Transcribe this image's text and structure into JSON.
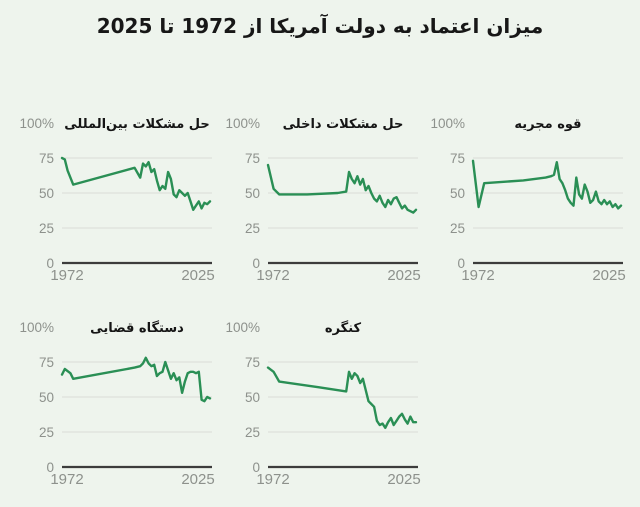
{
  "page": {
    "title": "میزان اعتماد به دولت آمریکا از 1972 تا 2025",
    "background": "#eef4ed"
  },
  "colors": {
    "line": "#2a8f55",
    "grid": "#d9ddd6",
    "axis": "#3c3c3c",
    "tick_text": "#8d918c",
    "title_text": "#151515"
  },
  "axis_labels": {
    "y_top": "100%",
    "y_ticks": [
      "75",
      "50",
      "25",
      "0"
    ],
    "x_ticks": [
      "1972",
      "2025"
    ]
  },
  "chart_data": [
    {
      "type": "line",
      "title": "حل مشکلات بین‌المللی",
      "y_top_label": "100%",
      "y_tick_values": [
        75,
        50,
        25,
        0
      ],
      "grid_values": [
        75,
        50,
        25
      ],
      "x_tick_labels": [
        "1972",
        "2025"
      ],
      "ylim": [
        0,
        100
      ],
      "xlim": [
        1972,
        2025
      ],
      "x": [
        1972,
        1973,
        1974,
        1976,
        1998,
        2000,
        2001,
        2002,
        2003,
        2004,
        2005,
        2006,
        2007,
        2008,
        2009,
        2010,
        2011,
        2012,
        2013,
        2014,
        2015,
        2016,
        2017,
        2018,
        2019,
        2020,
        2021,
        2022,
        2023,
        2024,
        2025
      ],
      "y": [
        75,
        74,
        66,
        56,
        68,
        61,
        71,
        69,
        72,
        65,
        67,
        59,
        52,
        55,
        53,
        65,
        60,
        49,
        47,
        52,
        50,
        48,
        50,
        44,
        38,
        41,
        44,
        39,
        43,
        42,
        44
      ]
    },
    {
      "type": "line",
      "title": "حل مشکلات داخلی",
      "y_top_label": "100%",
      "y_tick_values": [
        75,
        50,
        25,
        0
      ],
      "grid_values": [
        75,
        50,
        25
      ],
      "x_tick_labels": [
        "1972",
        "2025"
      ],
      "ylim": [
        0,
        100
      ],
      "xlim": [
        1972,
        2025
      ],
      "x": [
        1972,
        1974,
        1976,
        1986,
        1997,
        2000,
        2001,
        2002,
        2003,
        2004,
        2005,
        2006,
        2007,
        2008,
        2009,
        2010,
        2011,
        2012,
        2013,
        2014,
        2015,
        2016,
        2017,
        2018,
        2019,
        2020,
        2021,
        2022,
        2023,
        2024,
        2025
      ],
      "y": [
        70,
        53,
        49,
        49,
        50,
        51,
        65,
        60,
        57,
        62,
        56,
        60,
        52,
        55,
        50,
        46,
        44,
        48,
        43,
        40,
        45,
        42,
        46,
        47,
        43,
        39,
        41,
        38,
        37,
        36,
        38
      ]
    },
    {
      "type": "line",
      "title": "قوه مجریه",
      "y_top_label": "100%",
      "y_tick_values": [
        75,
        50,
        25,
        0
      ],
      "grid_values": [
        75,
        50,
        25
      ],
      "x_tick_labels": [
        "1972",
        "2025"
      ],
      "ylim": [
        0,
        100
      ],
      "xlim": [
        1972,
        2025
      ],
      "x": [
        1972,
        1974,
        1976,
        1990,
        1998,
        2000,
        2001,
        2002,
        2003,
        2004,
        2005,
        2006,
        2007,
        2008,
        2009,
        2010,
        2011,
        2012,
        2013,
        2014,
        2015,
        2016,
        2017,
        2018,
        2019,
        2020,
        2021,
        2022,
        2023,
        2024,
        2025
      ],
      "y": [
        73,
        40,
        57,
        59,
        61,
        62,
        63,
        72,
        60,
        57,
        52,
        46,
        43,
        41,
        61,
        49,
        46,
        56,
        51,
        43,
        45,
        51,
        44,
        42,
        45,
        42,
        44,
        40,
        42,
        39,
        41
      ]
    },
    {
      "type": "line",
      "title": "دستگاه قضایی",
      "y_top_label": "100%",
      "y_tick_values": [
        75,
        50,
        25,
        0
      ],
      "grid_values": [
        75,
        50,
        25
      ],
      "x_tick_labels": [
        "1972",
        "2025"
      ],
      "ylim": [
        0,
        100
      ],
      "xlim": [
        1972,
        2025
      ],
      "x": [
        1972,
        1973,
        1975,
        1976,
        1998,
        2000,
        2001,
        2002,
        2003,
        2004,
        2005,
        2006,
        2007,
        2008,
        2009,
        2010,
        2011,
        2012,
        2013,
        2014,
        2015,
        2016,
        2017,
        2018,
        2019,
        2020,
        2021,
        2022,
        2023,
        2024,
        2025
      ],
      "y": [
        66,
        70,
        67,
        63,
        71,
        72,
        74,
        78,
        74,
        72,
        73,
        65,
        67,
        68,
        75,
        69,
        63,
        67,
        62,
        64,
        53,
        61,
        67,
        68,
        68,
        67,
        68,
        48,
        47,
        50,
        49
      ]
    },
    {
      "type": "line",
      "title": "کنگره",
      "y_top_label": "100%",
      "y_tick_values": [
        75,
        50,
        25,
        0
      ],
      "grid_values": [
        75,
        50,
        25
      ],
      "x_tick_labels": [
        "1972",
        "2025"
      ],
      "ylim": [
        0,
        100
      ],
      "xlim": [
        1972,
        2025
      ],
      "x": [
        1972,
        1974,
        1976,
        1990,
        2000,
        2001,
        2002,
        2003,
        2004,
        2005,
        2006,
        2007,
        2008,
        2009,
        2010,
        2011,
        2012,
        2013,
        2014,
        2015,
        2016,
        2017,
        2018,
        2019,
        2020,
        2021,
        2022,
        2023,
        2024,
        2025
      ],
      "y": [
        71,
        68,
        61,
        57,
        54,
        68,
        63,
        67,
        65,
        60,
        63,
        55,
        47,
        45,
        43,
        33,
        30,
        31,
        28,
        32,
        35,
        30,
        33,
        36,
        38,
        34,
        31,
        36,
        32,
        32
      ]
    }
  ]
}
